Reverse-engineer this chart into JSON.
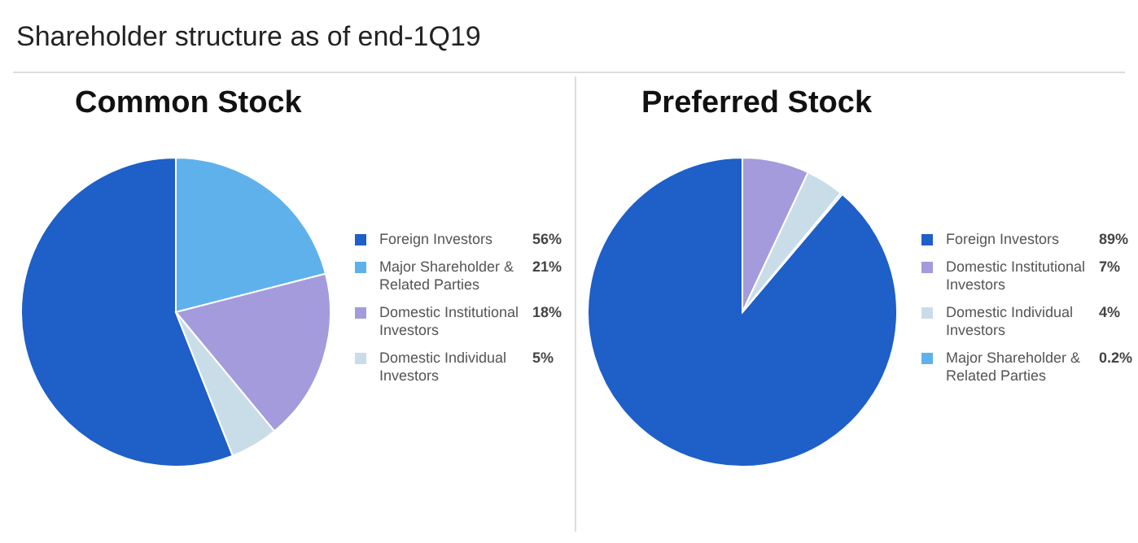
{
  "chart_data": [
    {
      "type": "pie",
      "title": "Shareholder structure as of end-1Q19",
      "subtitle": "Common Stock",
      "categories": [
        "Foreign Investors",
        "Major Shareholder & Related Parties",
        "Domestic Institutional Investors",
        "Domestic Individual Investors"
      ],
      "values": [
        56,
        21,
        18,
        5
      ],
      "value_labels": [
        "56%",
        "21%",
        "18%",
        "5%"
      ],
      "colors": [
        "#1e5fc8",
        "#5fb1ec",
        "#a39bdb",
        "#c9dde9"
      ],
      "legend": "right"
    },
    {
      "type": "pie",
      "title": "Preferred Stock",
      "categories": [
        "Foreign Investors",
        "Domestic Institutional Investors",
        "Domestic Individual Investors",
        "Major Shareholder & Related Parties"
      ],
      "values": [
        89,
        7,
        4,
        0.2
      ],
      "value_labels": [
        "89%",
        "7%",
        "4%",
        "0.2%"
      ],
      "colors": [
        "#1e5fc8",
        "#a39bdb",
        "#c9dde9",
        "#5fb1ec"
      ],
      "legend": "right"
    }
  ]
}
